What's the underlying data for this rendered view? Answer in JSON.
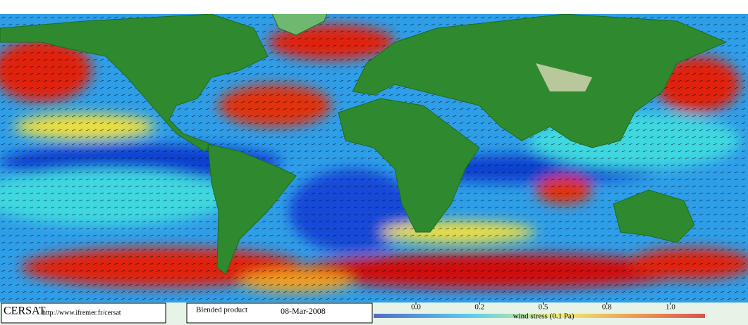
{
  "footer": {
    "logo": "CERSAT",
    "url": "http://www.ifremer.fr/cersat",
    "product": "Blended product",
    "date": "08-Mar-2008"
  },
  "colorbar": {
    "label": "wind stress (0.1 Pa)",
    "lim": [
      0,
      1
    ],
    "ticks": [
      {
        "value": 0,
        "label": "0.0"
      },
      0.2,
      0.5,
      0.8,
      {
        "value": 1,
        "label": "1.0"
      }
    ]
  }
}
